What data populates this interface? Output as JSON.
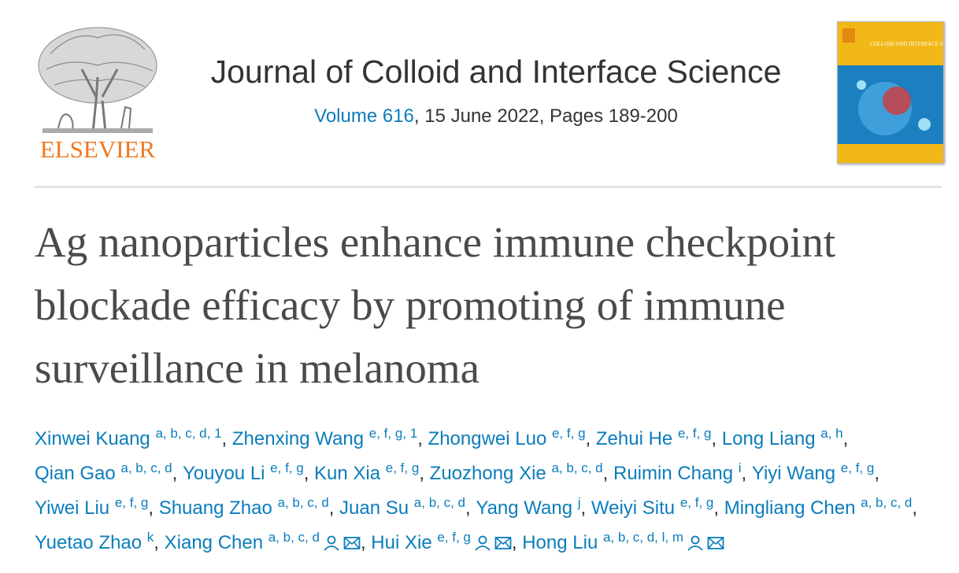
{
  "header": {
    "publisher": "ELSEVIER",
    "journal": "Journal of Colloid and Interface Science",
    "volume": "Volume 616",
    "issue_details": ", 15 June 2022, Pages 189-200",
    "cover_title": "COLLOID AND INTERFACE SCIENCE"
  },
  "article": {
    "title": "Ag nanoparticles enhance immune checkpoint blockade efficacy by promoting of immune surveillance in melanoma"
  },
  "authors": {
    "separator": ", ",
    "list": [
      {
        "name": "Xinwei Kuang",
        "affiliations": "a, b, c, d, 1",
        "corresponding": false
      },
      {
        "name": "Zhenxing Wang",
        "affiliations": "e, f, g, 1",
        "corresponding": false
      },
      {
        "name": "Zhongwei Luo",
        "affiliations": "e, f, g",
        "corresponding": false
      },
      {
        "name": "Zehui He",
        "affiliations": "e, f, g",
        "corresponding": false
      },
      {
        "name": "Long Liang",
        "affiliations": "a, h",
        "corresponding": false
      },
      {
        "name": "Qian Gao",
        "affiliations": "a, b, c, d",
        "corresponding": false
      },
      {
        "name": "Youyou Li",
        "affiliations": "e, f, g",
        "corresponding": false
      },
      {
        "name": "Kun Xia",
        "affiliations": "e, f, g",
        "corresponding": false
      },
      {
        "name": "Zuozhong Xie",
        "affiliations": "a, b, c, d",
        "corresponding": false
      },
      {
        "name": "Ruimin Chang",
        "affiliations": "i",
        "corresponding": false
      },
      {
        "name": "Yiyi Wang",
        "affiliations": "e, f, g",
        "corresponding": false
      },
      {
        "name": "Yiwei Liu",
        "affiliations": "e, f, g",
        "corresponding": false
      },
      {
        "name": "Shuang Zhao",
        "affiliations": "a, b, c, d",
        "corresponding": false
      },
      {
        "name": "Juan Su",
        "affiliations": "a, b, c, d",
        "corresponding": false
      },
      {
        "name": "Yang Wang",
        "affiliations": "j",
        "corresponding": false
      },
      {
        "name": "Weiyi Situ",
        "affiliations": "e, f, g",
        "corresponding": false
      },
      {
        "name": "Mingliang Chen",
        "affiliations": "a, b, c, d",
        "corresponding": false
      },
      {
        "name": "Yuetao Zhao",
        "affiliations": "k",
        "corresponding": false
      },
      {
        "name": "Xiang Chen",
        "affiliations": "a, b, c, d",
        "corresponding": true
      },
      {
        "name": "Hui Xie",
        "affiliations": "e, f, g",
        "corresponding": true
      },
      {
        "name": "Hong Liu",
        "affiliations": "a, b, c, d, l, m",
        "corresponding": true
      }
    ]
  }
}
